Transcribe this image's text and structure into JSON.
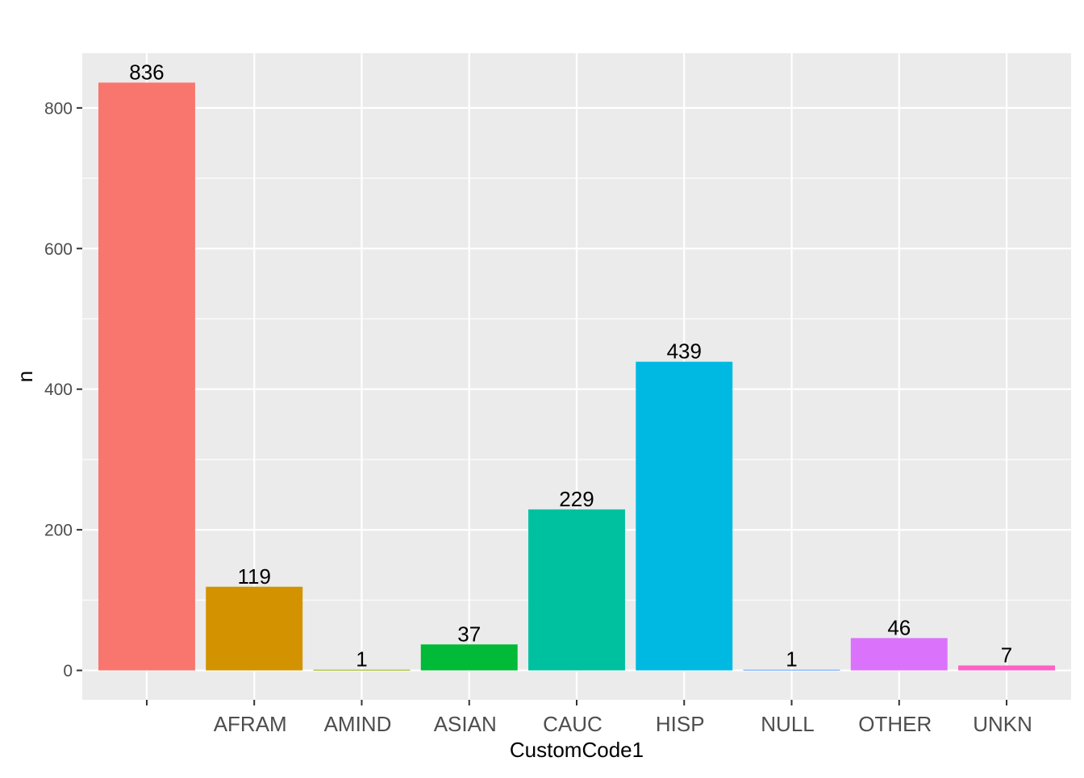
{
  "chart_data": {
    "type": "bar",
    "categories": [
      "",
      "AFRAM",
      "AMIND",
      "ASIAN",
      "CAUC",
      "HISP",
      "NULL",
      "OTHER",
      "UNKN"
    ],
    "values": [
      836,
      119,
      1,
      37,
      229,
      439,
      1,
      46,
      7
    ],
    "data_labels": [
      "836",
      "119",
      "1",
      "37",
      "229",
      "439",
      "1",
      "46",
      "7"
    ],
    "colors": [
      "#F8766D",
      "#D39200",
      "#93AA00",
      "#00BA38",
      "#00C19F",
      "#00B9E3",
      "#619CFF",
      "#DB72FB",
      "#FF61C3"
    ],
    "title": "",
    "xlabel": "CustomCode1",
    "ylabel": "n",
    "ylim": [
      -41.8,
      877.8
    ],
    "yticks": [
      0,
      200,
      400,
      600,
      800
    ],
    "yticks_labels": [
      "0",
      "200",
      "400",
      "600",
      "800"
    ],
    "grid": true,
    "panel_background": "#EBEBEB",
    "grid_color": "#FFFFFF",
    "legend": "none"
  }
}
